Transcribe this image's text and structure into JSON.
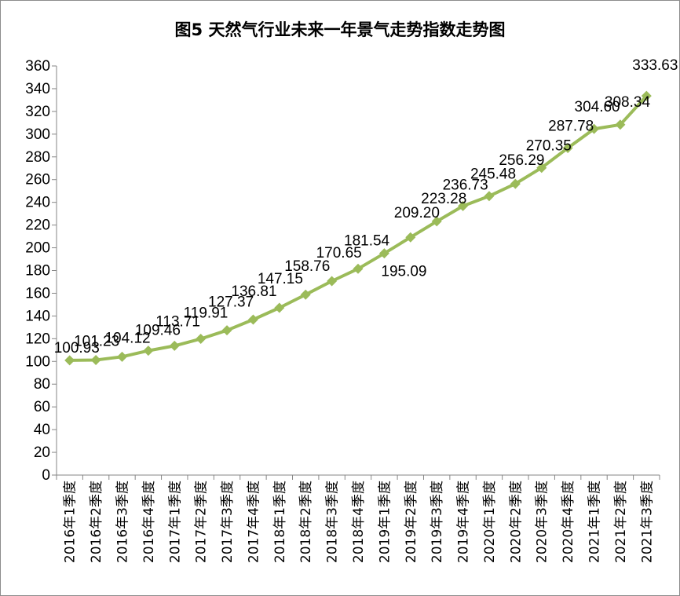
{
  "chart_data": {
    "type": "line",
    "title": "图5  天然气行业未来一年景气走势指数走势图",
    "xlabel": "",
    "ylabel": "",
    "ylim": [
      0,
      360
    ],
    "ytick_step": 20,
    "grid": false,
    "legend": "none",
    "line_color": "#9bbb59",
    "x": [
      "2016年1季度",
      "2016年2季度",
      "2016年3季度",
      "2016年4季度",
      "2017年1季度",
      "2017年2季度",
      "2017年3季度",
      "2017年4季度",
      "2018年1季度",
      "2018年2季度",
      "2018年3季度",
      "2018年4季度",
      "2019年1季度",
      "2019年2季度",
      "2019年3季度",
      "2019年4季度",
      "2020年1季度",
      "2020年2季度",
      "2020年3季度",
      "2020年4季度",
      "2021年1季度",
      "2021年2季度",
      "2021年3季度"
    ],
    "series": [
      {
        "values": [
          100.93,
          101.23,
          104.12,
          109.46,
          113.71,
          119.91,
          127.37,
          136.81,
          147.15,
          158.76,
          170.65,
          181.54,
          195.09,
          209.2,
          223.28,
          236.73,
          245.48,
          256.29,
          270.35,
          287.78,
          304.6,
          308.34,
          333.63
        ]
      }
    ],
    "data_labels": [
      "100.93",
      "101.23",
      "104.12",
      "109.46",
      "113.71",
      "119.91",
      "127.37",
      "136.81",
      "147.15",
      "158.76",
      "170.65",
      "181.54",
      "195.09",
      "209.20",
      "223.28",
      "236.73",
      "245.48",
      "256.29",
      "270.35",
      "287.78",
      "304.60",
      "308.34",
      "333.63"
    ]
  }
}
